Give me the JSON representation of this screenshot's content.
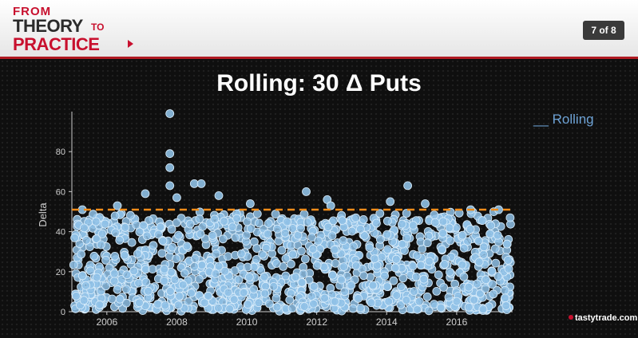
{
  "header": {
    "logo": {
      "line1": "FROM",
      "line2": "THEORY",
      "line2_suffix": "TO",
      "line3": "PRACTICE"
    },
    "slide_counter": "7 of 8"
  },
  "slide": {
    "title": "Rolling: 30 Δ Puts",
    "brand": "tastytrade.com"
  },
  "colors": {
    "header_bg": "#f2f2f2",
    "accent_red": "#c8102e",
    "point_fill": "#8fc1e6",
    "point_stroke": "#d9ecfa",
    "threshold_line": "#f08c1a",
    "text_light": "#cfcfcf"
  },
  "chart_data": {
    "type": "scatter",
    "title": "",
    "xlabel": "",
    "ylabel": "Delta",
    "x_range": [
      "2005-01",
      "2017-08"
    ],
    "ylim": [
      0,
      100
    ],
    "x_ticks": [
      "2006",
      "2008",
      "2010",
      "2012",
      "2014",
      "2016"
    ],
    "y_ticks": [
      0,
      20,
      40,
      60,
      80
    ],
    "grid": false,
    "legend": {
      "position": "top-right",
      "entries": [
        "__ Rolling"
      ]
    },
    "threshold": {
      "y": 51,
      "style": "dashed",
      "label": "Rolling"
    },
    "series": [
      {
        "note": "dense cloud of individual trade deltas, approx. 0-50 concentration",
        "outliers": [
          {
            "x": "2005.3",
            "y": 51
          },
          {
            "x": "2006.3",
            "y": 53
          },
          {
            "x": "2007.1",
            "y": 59
          },
          {
            "x": "2007.8",
            "y": 99
          },
          {
            "x": "2007.8",
            "y": 79
          },
          {
            "x": "2007.8",
            "y": 72
          },
          {
            "x": "2007.8",
            "y": 63
          },
          {
            "x": "2008.0",
            "y": 57
          },
          {
            "x": "2008.5",
            "y": 64
          },
          {
            "x": "2008.7",
            "y": 64
          },
          {
            "x": "2009.2",
            "y": 58
          },
          {
            "x": "2010.1",
            "y": 54
          },
          {
            "x": "2011.7",
            "y": 60
          },
          {
            "x": "2012.3",
            "y": 56
          },
          {
            "x": "2012.4",
            "y": 53
          },
          {
            "x": "2014.1",
            "y": 55
          },
          {
            "x": "2014.6",
            "y": 63
          },
          {
            "x": "2015.1",
            "y": 54
          },
          {
            "x": "2016.4",
            "y": 51
          },
          {
            "x": "2017.2",
            "y": 51
          }
        ]
      }
    ]
  }
}
